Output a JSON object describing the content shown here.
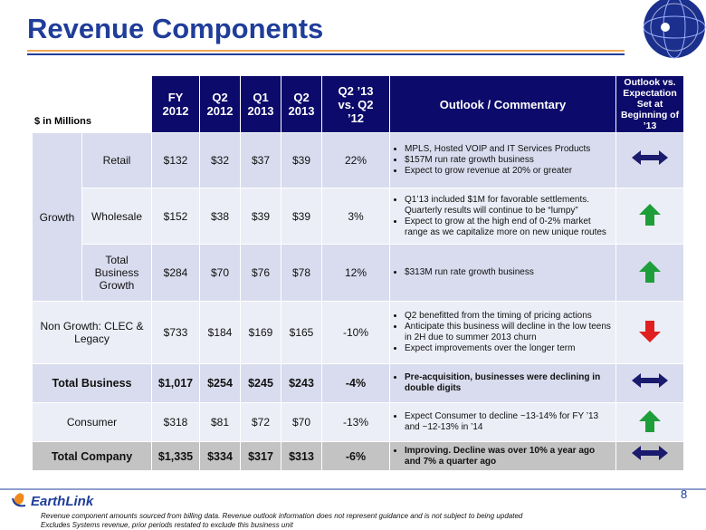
{
  "header": {
    "title": "Revenue Components",
    "units": "$ in Millions"
  },
  "table": {
    "columns": [
      "FY\n2012",
      "Q2\n2012",
      "Q1\n2013",
      "Q2\n2013",
      "Q2 ’13\nvs. Q2\n’12",
      "Outlook / Commentary",
      "Outlook vs. Expectation Set at Beginning of ’13"
    ],
    "group": "Growth",
    "rows": [
      {
        "label": "Retail",
        "grouped": true,
        "shade": "#d9dcee",
        "trend": "flat",
        "cells": [
          "$132",
          "$32",
          "$37",
          "$39",
          "22%"
        ],
        "commentary": [
          "MPLS, Hosted VOIP and IT Services Products",
          "$157M run rate growth business",
          "Expect to grow revenue at 20% or greater"
        ]
      },
      {
        "label": "Wholesale",
        "grouped": true,
        "shade": "#eceef7",
        "trend": "up",
        "cells": [
          "$152",
          "$38",
          "$39",
          "$39",
          "3%"
        ],
        "commentary": [
          "Q1’13 included $1M for favorable settlements. Quarterly results will continue to be “lumpy”",
          "Expect to grow at the high end of 0-2% market range as we capitalize more on new unique routes"
        ]
      },
      {
        "label": "Total Business Growth",
        "grouped": true,
        "shade": "#d9dcee",
        "trend": "up",
        "cells": [
          "$284",
          "$70",
          "$76",
          "$78",
          "12%"
        ],
        "commentary": [
          "$313M run rate growth business"
        ]
      },
      {
        "label": "Non Growth:  CLEC & Legacy",
        "grouped": false,
        "shade": "#eceef7",
        "trend": "down",
        "cells": [
          "$733",
          "$184",
          "$169",
          "$165",
          "-10%"
        ],
        "commentary": [
          "Q2 benefitted from the timing of pricing actions",
          "Anticipate this business will decline in the low teens in 2H due to summer 2013 churn",
          "Expect improvements over the longer term"
        ]
      },
      {
        "label": "Total Business",
        "grouped": false,
        "bold": true,
        "shade": "#d9dcee",
        "trend": "flat",
        "cells": [
          "$1,017",
          "$254",
          "$245",
          "$243",
          "-4%"
        ],
        "commentary": [
          "Pre-acquisition, businesses were declining in double digits"
        ]
      },
      {
        "label": "Consumer",
        "grouped": false,
        "shade": "#eceef7",
        "trend": "up",
        "cells": [
          "$318",
          "$81",
          "$72",
          "$70",
          "-13%"
        ],
        "commentary": [
          "Expect Consumer to decline ~13-14% for FY ’13 and ~12-13% in ’14"
        ]
      },
      {
        "label": "Total Company",
        "grouped": false,
        "bold": true,
        "shade": "#c3c3c3",
        "trend": "flat",
        "cells": [
          "$1,335",
          "$334",
          "$317",
          "$313",
          "-6%"
        ],
        "commentary": [
          "Improving. Decline was over 10% a year ago and 7% a quarter ago"
        ]
      }
    ]
  },
  "footer": {
    "logo": "EarthLink",
    "page": "8",
    "notes": [
      "Revenue component amounts sourced from billing data. Revenue outlook information does not represent guidance and is not subject to being updated",
      "Excludes Systems revenue, prior periods restated to exclude this business unit"
    ]
  }
}
